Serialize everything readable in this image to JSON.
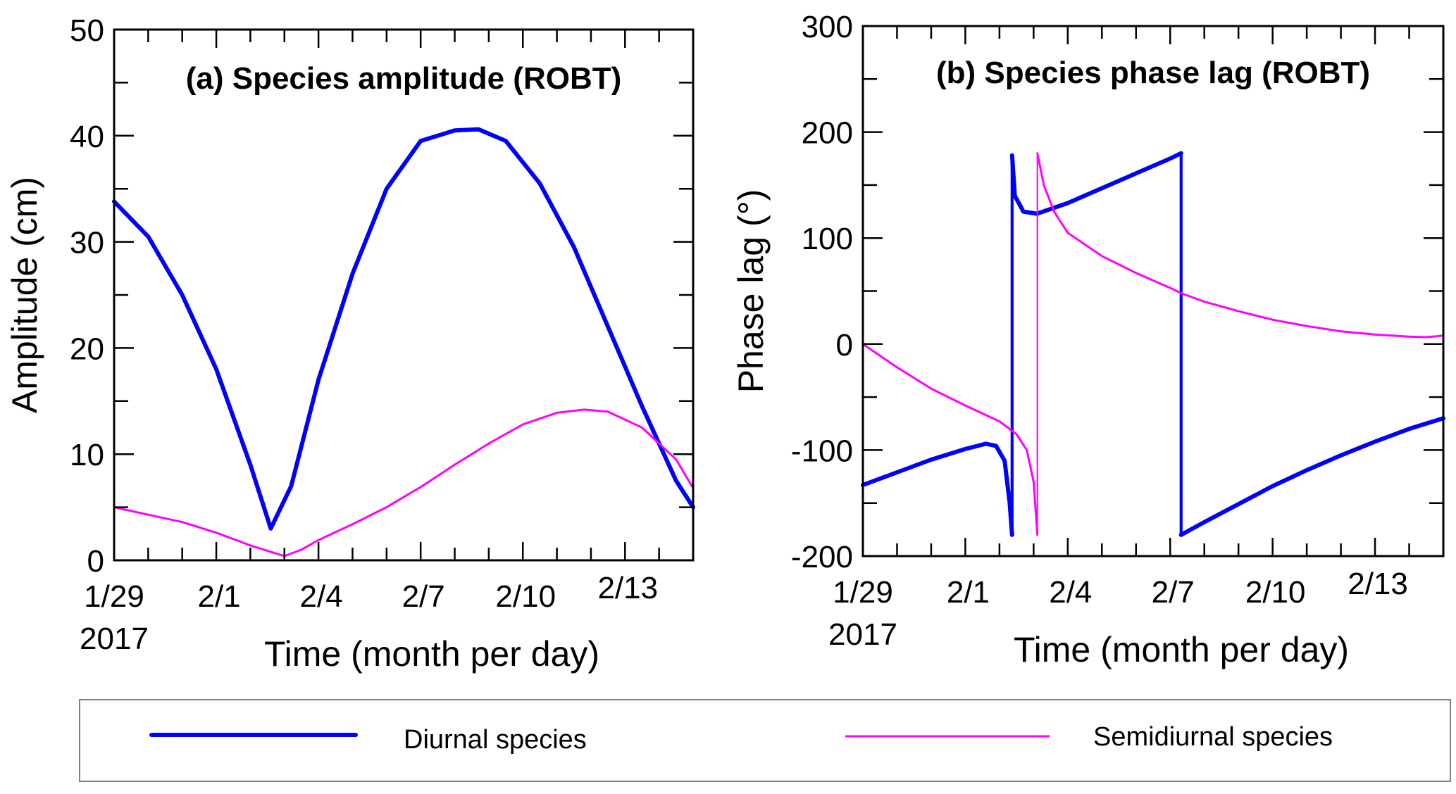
{
  "chart_data": [
    {
      "type": "line",
      "title": "(a) Species amplitude (ROBT)",
      "xlabel": "Time (month per day)",
      "ylabel": "Amplitude (cm)",
      "x_unit": "days since 2017-01-29",
      "xlim": [
        0,
        17
      ],
      "ylim": [
        0,
        50
      ],
      "y_ticks": [
        0,
        10,
        20,
        30,
        40,
        50
      ],
      "y_tick_labels": [
        "0",
        "10",
        "20",
        "30",
        "40",
        "50"
      ],
      "x_major_ticks": [
        0,
        3,
        6,
        9,
        12,
        15
      ],
      "x_tick_labels": [
        "1/29",
        "2/1",
        "2/4",
        "2/7",
        "2/10",
        "2/13"
      ],
      "x_tick_sublabel": "2017",
      "grid": false,
      "series": [
        {
          "name": "Diurnal species",
          "color": "#0000ff",
          "x": [
            0,
            1,
            2,
            3,
            4,
            4.6,
            5.2,
            6,
            7,
            8,
            9,
            10,
            10.7,
            11.5,
            12.5,
            13.5,
            14.5,
            15.5,
            16.5,
            17
          ],
          "values": [
            33.8,
            30.5,
            25,
            18,
            9,
            3.0,
            7,
            17,
            27,
            35,
            39.5,
            40.5,
            40.6,
            39.5,
            35.5,
            29.5,
            22,
            14.5,
            7.5,
            5.0
          ]
        },
        {
          "name": "Semidiurnal species",
          "color": "#ff00ff",
          "x": [
            0,
            1,
            2,
            3,
            4,
            5,
            5.5,
            6,
            7,
            8,
            9,
            10,
            11,
            12,
            13,
            13.8,
            14.5,
            15.5,
            16.5,
            17
          ],
          "values": [
            5.0,
            4.3,
            3.6,
            2.6,
            1.4,
            0.4,
            1.0,
            1.9,
            3.4,
            5.0,
            6.9,
            9.0,
            11.0,
            12.8,
            13.9,
            14.2,
            14.0,
            12.5,
            9.5,
            6.8
          ]
        }
      ]
    },
    {
      "type": "line",
      "title": "(b) Species phase lag (ROBT)",
      "xlabel": "Time (month per day)",
      "ylabel": "Phase lag (°)",
      "x_unit": "days since 2017-01-29",
      "xlim": [
        0,
        17
      ],
      "ylim": [
        -200,
        300
      ],
      "y_ticks": [
        -200,
        -100,
        0,
        100,
        200,
        300
      ],
      "y_tick_labels": [
        "-200",
        "-100",
        "0",
        "100",
        "200",
        "300"
      ],
      "x_major_ticks": [
        0,
        3,
        6,
        9,
        12,
        15
      ],
      "x_tick_labels": [
        "1/29",
        "2/1",
        "2/4",
        "2/7",
        "2/10",
        "2/13"
      ],
      "x_tick_sublabel": "2017",
      "grid": false,
      "series": [
        {
          "name": "Diurnal species",
          "color": "#0000ff",
          "segments": [
            {
              "x": [
                0,
                1,
                2,
                3,
                3.6,
                3.9,
                4.15,
                4.3,
                4.37
              ],
              "values": [
                -133,
                -121,
                -109,
                -99,
                -94,
                -96,
                -110,
                -150,
                -180
              ]
            },
            {
              "x": [
                4.37,
                4.45,
                4.7,
                5.1,
                6,
                7,
                8,
                9,
                9.32
              ],
              "values": [
                178,
                140,
                125,
                123,
                133,
                147,
                161,
                175,
                180
              ]
            },
            {
              "x": [
                9.32,
                10,
                11,
                12,
                13,
                14,
                15,
                16,
                17
              ],
              "values": [
                -180,
                -168,
                -151,
                -134,
                -119,
                -105,
                -92,
                -80,
                -70
              ]
            }
          ]
        },
        {
          "name": "Semidiurnal species",
          "color": "#ff00ff",
          "segments": [
            {
              "x": [
                0,
                1,
                2,
                3,
                4,
                4.5,
                4.8,
                5.0,
                5.11
              ],
              "values": [
                0,
                -22,
                -42,
                -58,
                -73,
                -85,
                -100,
                -130,
                -180
              ]
            },
            {
              "x": [
                5.11,
                5.3,
                5.6,
                6,
                7,
                8,
                9,
                9.32,
                10,
                11,
                12,
                13,
                14,
                15,
                16,
                16.5,
                17
              ],
              "values": [
                180,
                150,
                125,
                105,
                83,
                67,
                53,
                48,
                40,
                31,
                23,
                17,
                12,
                9,
                7,
                6.5,
                8
              ]
            }
          ]
        }
      ]
    }
  ],
  "legend": {
    "placement": "bottom",
    "items": [
      {
        "label": "Diurnal species",
        "color": "#0000ff"
      },
      {
        "label": "Semidiurnal species",
        "color": "#ff00ff"
      }
    ]
  }
}
